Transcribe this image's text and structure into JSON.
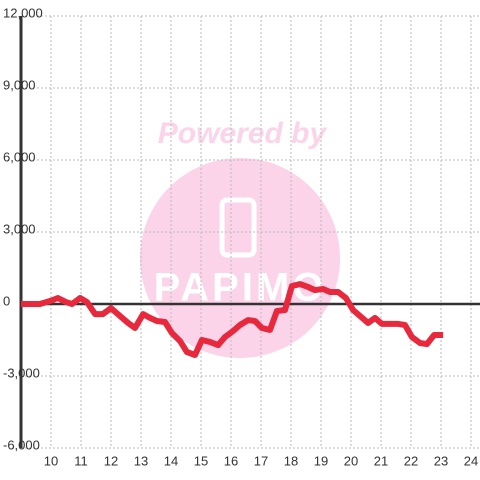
{
  "chart_data": {
    "type": "line",
    "watermark_top": "Powered by",
    "watermark_logo": "PAPIMO",
    "xlim": [
      9,
      24.3
    ],
    "ylim": [
      -6000,
      12000
    ],
    "xticks": [
      10,
      11,
      12,
      13,
      14,
      15,
      16,
      17,
      18,
      19,
      20,
      21,
      22,
      23,
      24
    ],
    "yticks": [
      {
        "value": -6000,
        "label": "-6,000"
      },
      {
        "value": -3000,
        "label": "-3,000"
      },
      0,
      {
        "value": 3000,
        "label": "3,000"
      },
      {
        "value": 6000,
        "label": "6,000"
      },
      {
        "value": 9000,
        "label": "9,000"
      },
      {
        "value": 12000,
        "label": "12,000"
      }
    ],
    "grid": true,
    "series": [
      {
        "color": "#e8283c",
        "x": [
          9.0,
          9.63,
          9.97,
          10.23,
          10.5,
          10.7,
          10.97,
          11.2,
          11.47,
          11.73,
          12.0,
          12.3,
          12.57,
          12.8,
          13.07,
          13.3,
          13.53,
          13.8,
          14.03,
          14.3,
          14.53,
          14.8,
          15.03,
          15.3,
          15.57,
          15.8,
          16.07,
          16.3,
          16.57,
          16.8,
          17.03,
          17.3,
          17.53,
          17.8,
          18.03,
          18.3,
          18.57,
          18.8,
          19.07,
          19.3,
          19.57,
          19.83,
          20.07,
          20.3,
          20.57,
          20.8,
          21.03,
          21.3,
          21.57,
          21.8,
          22.03,
          22.3,
          22.53,
          22.77,
          23.07
        ],
        "values": [
          0,
          0,
          125,
          250,
          80,
          0,
          250,
          80,
          -420,
          -420,
          -170,
          -500,
          -790,
          -1000,
          -420,
          -580,
          -710,
          -750,
          -1210,
          -1540,
          -2000,
          -2125,
          -1500,
          -1580,
          -1710,
          -1375,
          -1125,
          -875,
          -670,
          -710,
          -1000,
          -1080,
          -290,
          -250,
          750,
          830,
          710,
          580,
          625,
          500,
          500,
          250,
          -250,
          -500,
          -790,
          -580,
          -830,
          -830,
          -830,
          -875,
          -1375,
          -1625,
          -1670,
          -1290,
          -1290
        ]
      }
    ]
  }
}
